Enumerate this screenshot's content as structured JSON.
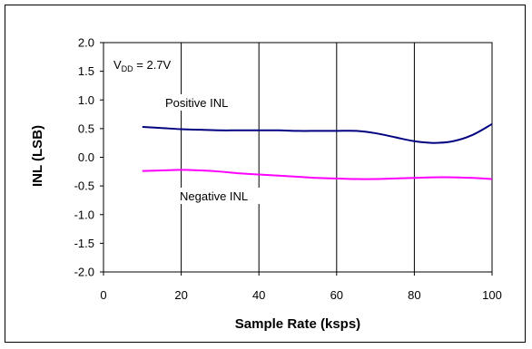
{
  "chart_data": {
    "type": "line",
    "xlabel": "Sample Rate (ksps)",
    "ylabel": "INL (LSB)",
    "xlim": [
      0,
      100
    ],
    "ylim": [
      -2.0,
      2.0
    ],
    "x_ticks": [
      "0",
      "20",
      "40",
      "60",
      "80",
      "100"
    ],
    "y_ticks": [
      "2.0",
      "1.5",
      "1.0",
      "0.5",
      "0.0",
      "-0.5",
      "-1.0",
      "-1.5",
      "-2.0"
    ],
    "grid": "vertical",
    "annotations": {
      "vdd_main": "V",
      "vdd_sub": "DD",
      "vdd_rest": " = 2.7V"
    },
    "series": [
      {
        "name": "Positive INL",
        "color": "#000080",
        "x": [
          10,
          15,
          20,
          25,
          30,
          35,
          40,
          45,
          50,
          55,
          60,
          65,
          70,
          75,
          80,
          85,
          90,
          95,
          100
        ],
        "y": [
          0.53,
          0.51,
          0.49,
          0.48,
          0.47,
          0.47,
          0.47,
          0.47,
          0.46,
          0.46,
          0.46,
          0.46,
          0.42,
          0.35,
          0.28,
          0.25,
          0.28,
          0.39,
          0.58
        ]
      },
      {
        "name": "Negative INL",
        "color": "#FF00FF",
        "x": [
          10,
          15,
          20,
          25,
          30,
          35,
          40,
          45,
          50,
          55,
          60,
          65,
          70,
          75,
          80,
          85,
          90,
          95,
          100
        ],
        "y": [
          -0.24,
          -0.23,
          -0.22,
          -0.23,
          -0.25,
          -0.28,
          -0.3,
          -0.32,
          -0.34,
          -0.36,
          -0.37,
          -0.38,
          -0.38,
          -0.37,
          -0.36,
          -0.35,
          -0.35,
          -0.36,
          -0.38
        ]
      }
    ]
  }
}
